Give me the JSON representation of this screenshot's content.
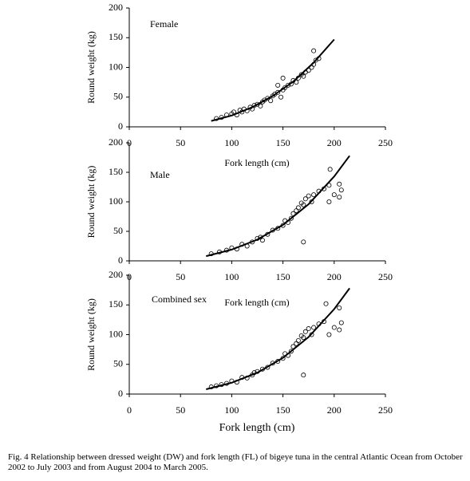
{
  "chart_data": [
    {
      "type": "scatter",
      "label": "Female",
      "xlabel": "Fork length (cm)",
      "ylabel": "Round weight (kg)",
      "xlim": [
        0,
        250
      ],
      "ylim": [
        0,
        200
      ],
      "xticks": [
        0,
        50,
        100,
        150,
        200,
        250
      ],
      "yticks": [
        0,
        50,
        100,
        150,
        200
      ],
      "points": {
        "x": [
          85,
          90,
          95,
          100,
          102,
          105,
          108,
          110,
          112,
          115,
          118,
          120,
          122,
          125,
          128,
          130,
          132,
          135,
          138,
          140,
          142,
          145,
          148,
          150,
          152,
          155,
          158,
          160,
          163,
          165,
          168,
          170,
          172,
          175,
          178,
          180,
          182,
          185,
          180,
          150,
          145
        ],
        "y": [
          14,
          16,
          20,
          22,
          25,
          20,
          28,
          25,
          30,
          27,
          33,
          30,
          36,
          38,
          35,
          42,
          45,
          48,
          44,
          52,
          55,
          58,
          50,
          62,
          66,
          70,
          72,
          78,
          75,
          82,
          88,
          85,
          92,
          95,
          100,
          105,
          112,
          115,
          128,
          82,
          70
        ]
      },
      "curve": {
        "x": [
          80,
          100,
          120,
          140,
          160,
          180,
          200
        ],
        "y": [
          10,
          19,
          33,
          52,
          76,
          108,
          147
        ]
      }
    },
    {
      "type": "scatter",
      "label": "Male",
      "xlabel": "Fork length (cm)",
      "ylabel": "Round weight (kg)",
      "xlim": [
        0,
        250
      ],
      "ylim": [
        0,
        200
      ],
      "xticks": [
        0,
        50,
        100,
        150,
        200,
        250
      ],
      "yticks": [
        0,
        50,
        100,
        150,
        200
      ],
      "points": {
        "x": [
          80,
          88,
          95,
          100,
          105,
          110,
          115,
          120,
          125,
          128,
          130,
          135,
          140,
          145,
          150,
          152,
          155,
          158,
          160,
          163,
          165,
          168,
          170,
          170,
          172,
          175,
          178,
          180,
          185,
          190,
          195,
          196,
          200,
          205,
          205,
          207,
          195
        ],
        "y": [
          12,
          15,
          18,
          22,
          20,
          28,
          25,
          32,
          38,
          40,
          35,
          45,
          52,
          55,
          60,
          68,
          65,
          72,
          80,
          85,
          90,
          98,
          95,
          32,
          105,
          110,
          100,
          112,
          118,
          122,
          128,
          155,
          112,
          130,
          108,
          120,
          100
        ]
      },
      "curve": {
        "x": [
          75,
          100,
          125,
          150,
          175,
          200,
          215
        ],
        "y": [
          8,
          19,
          36,
          61,
          96,
          143,
          178
        ]
      }
    },
    {
      "type": "scatter",
      "label": "Combined sex",
      "xlabel": "Fork length (cm)",
      "ylabel": "Round weight (kg)",
      "xlim": [
        0,
        250
      ],
      "ylim": [
        0,
        200
      ],
      "xticks": [
        0,
        50,
        100,
        150,
        200,
        250
      ],
      "yticks": [
        0,
        50,
        100,
        150,
        200
      ],
      "points": {
        "x": [
          80,
          85,
          90,
          95,
          100,
          105,
          110,
          115,
          120,
          122,
          125,
          130,
          135,
          140,
          145,
          150,
          152,
          155,
          158,
          160,
          163,
          165,
          168,
          170,
          170,
          172,
          175,
          178,
          180,
          185,
          190,
          192,
          200,
          205,
          205,
          207,
          195
        ],
        "y": [
          12,
          14,
          16,
          18,
          22,
          20,
          28,
          27,
          32,
          36,
          38,
          42,
          45,
          52,
          55,
          60,
          68,
          65,
          72,
          80,
          85,
          90,
          98,
          95,
          32,
          105,
          110,
          100,
          112,
          118,
          122,
          152,
          112,
          145,
          108,
          120,
          100
        ]
      },
      "curve": {
        "x": [
          75,
          100,
          125,
          150,
          175,
          200,
          215
        ],
        "y": [
          8,
          19,
          36,
          61,
          96,
          143,
          178
        ]
      }
    }
  ],
  "caption": "Fig. 4 Relationship between dressed weight (DW) and fork length (FL) of bigeye tuna in the central Atlantic Ocean from October 2002 to July 2003 and from August 2004 to March 2005."
}
